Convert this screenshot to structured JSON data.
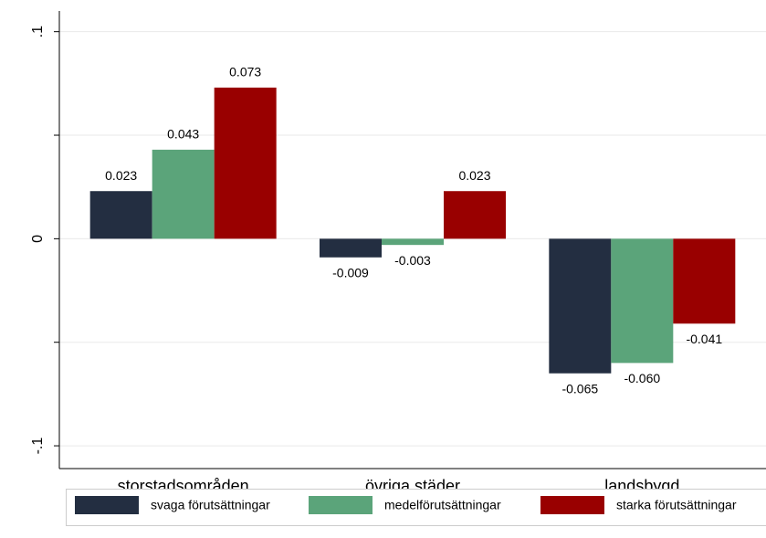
{
  "chart_data": {
    "type": "bar",
    "categories": [
      "storstadsområden",
      "övriga städer",
      "landsbygd"
    ],
    "series": [
      {
        "name": "svaga förutsättningar",
        "color": "#232e41",
        "values": [
          0.023,
          -0.009,
          -0.065
        ],
        "value_labels": [
          "0.023",
          "-0.009",
          "-0.065"
        ]
      },
      {
        "name": "medelförutsättningar",
        "color": "#5ba47a",
        "values": [
          0.043,
          -0.003,
          -0.06
        ],
        "value_labels": [
          "0.043",
          "-0.003",
          "-0.060"
        ]
      },
      {
        "name": "starka förutsättningar",
        "color": "#990000",
        "values": [
          0.073,
          0.023,
          -0.041
        ],
        "value_labels": [
          "0.073",
          "0.023",
          "-0.041"
        ]
      }
    ],
    "ylim": [
      -0.111,
      0.11
    ],
    "yticks": [
      {
        "value": -0.1,
        "label": "-.1"
      },
      0,
      {
        "value": 0.1,
        "label": ".1"
      }
    ],
    "minor_yticks": [
      -0.05,
      0.05
    ],
    "grid": true,
    "legend": "bottom"
  }
}
